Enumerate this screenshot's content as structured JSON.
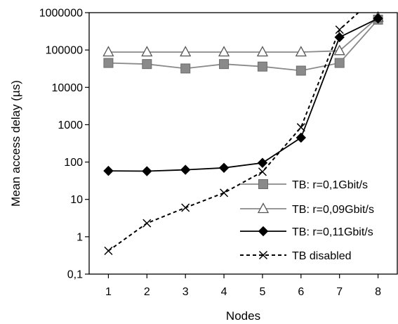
{
  "chart_data": {
    "type": "line",
    "xlabel": "Nodes",
    "ylabel": "Mean access delay (µs)",
    "x": [
      1,
      2,
      3,
      4,
      5,
      6,
      7,
      8
    ],
    "x_tick_labels": [
      "1",
      "2",
      "3",
      "4",
      "5",
      "6",
      "7",
      "8"
    ],
    "y_scale": "log",
    "ylim": [
      0.1,
      1000000
    ],
    "y_tick_values": [
      0.1,
      1,
      10,
      100,
      1000,
      10000,
      100000,
      1000000
    ],
    "y_tick_labels": [
      "0,1",
      "1",
      "10",
      "100",
      "1000",
      "10000",
      "100000",
      "1000000"
    ],
    "grid": false,
    "legend_position": "bottom-right",
    "series": [
      {
        "name": "TB: r=0,1Gbit/s",
        "marker": "square",
        "line_style": "solid",
        "line_color": "#8a8a8a",
        "marker_color": "#8a8a8a",
        "values": [
          45000,
          42000,
          32000,
          42000,
          36000,
          28000,
          45000,
          650000
        ]
      },
      {
        "name": "TB: r=0,09Gbit/s",
        "marker": "triangle",
        "line_style": "solid",
        "line_color": "#8a8a8a",
        "marker_color": "#8a8a8a",
        "values": [
          88000,
          88000,
          88000,
          88000,
          88000,
          88000,
          95000,
          750000
        ]
      },
      {
        "name": "TB: r=0,11Gbit/s",
        "marker": "diamond",
        "line_style": "solid",
        "line_color": "#000000",
        "marker_color": "#000000",
        "values": [
          58,
          57,
          62,
          70,
          95,
          450,
          220000,
          700000
        ]
      },
      {
        "name": "TB disabled",
        "marker": "x",
        "line_style": "dashed",
        "line_color": "#000000",
        "marker_color": "#000000",
        "values": [
          0.42,
          2.3,
          6.0,
          15,
          55,
          850,
          350000,
          3000000
        ]
      }
    ]
  }
}
